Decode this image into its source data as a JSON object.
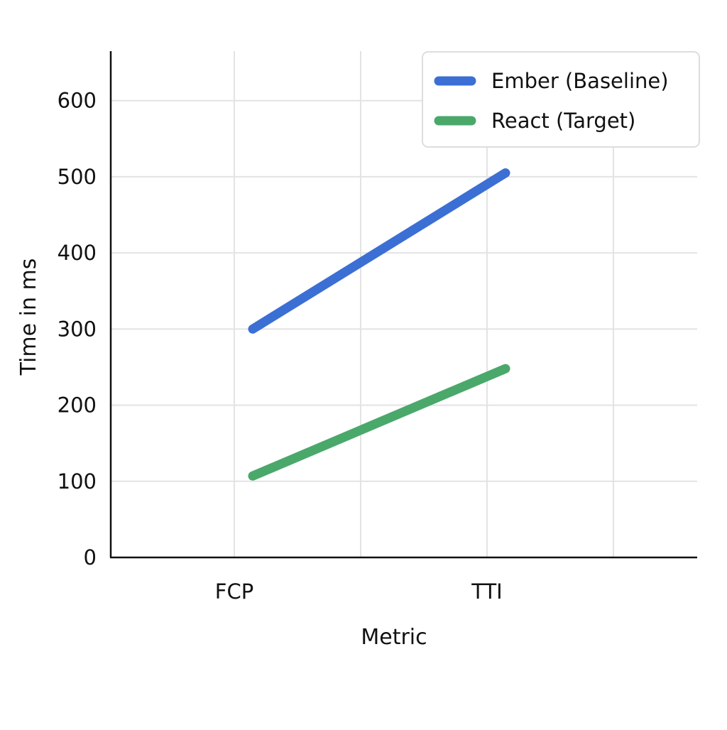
{
  "chart_data": {
    "type": "line",
    "title": "",
    "xlabel": "Metric",
    "ylabel": "Time in ms",
    "categories": [
      "FCP",
      "TTI"
    ],
    "yticks": [
      0,
      100,
      200,
      300,
      400,
      500,
      600
    ],
    "ylim": [
      0,
      665
    ],
    "grid": true,
    "legend_position": "top-right",
    "series": [
      {
        "name": "Ember (Baseline)",
        "color": "#3b6fd4",
        "values": [
          300,
          505
        ]
      },
      {
        "name": "React (Target)",
        "color": "#4aa86b",
        "values": [
          107,
          248
        ]
      }
    ]
  }
}
